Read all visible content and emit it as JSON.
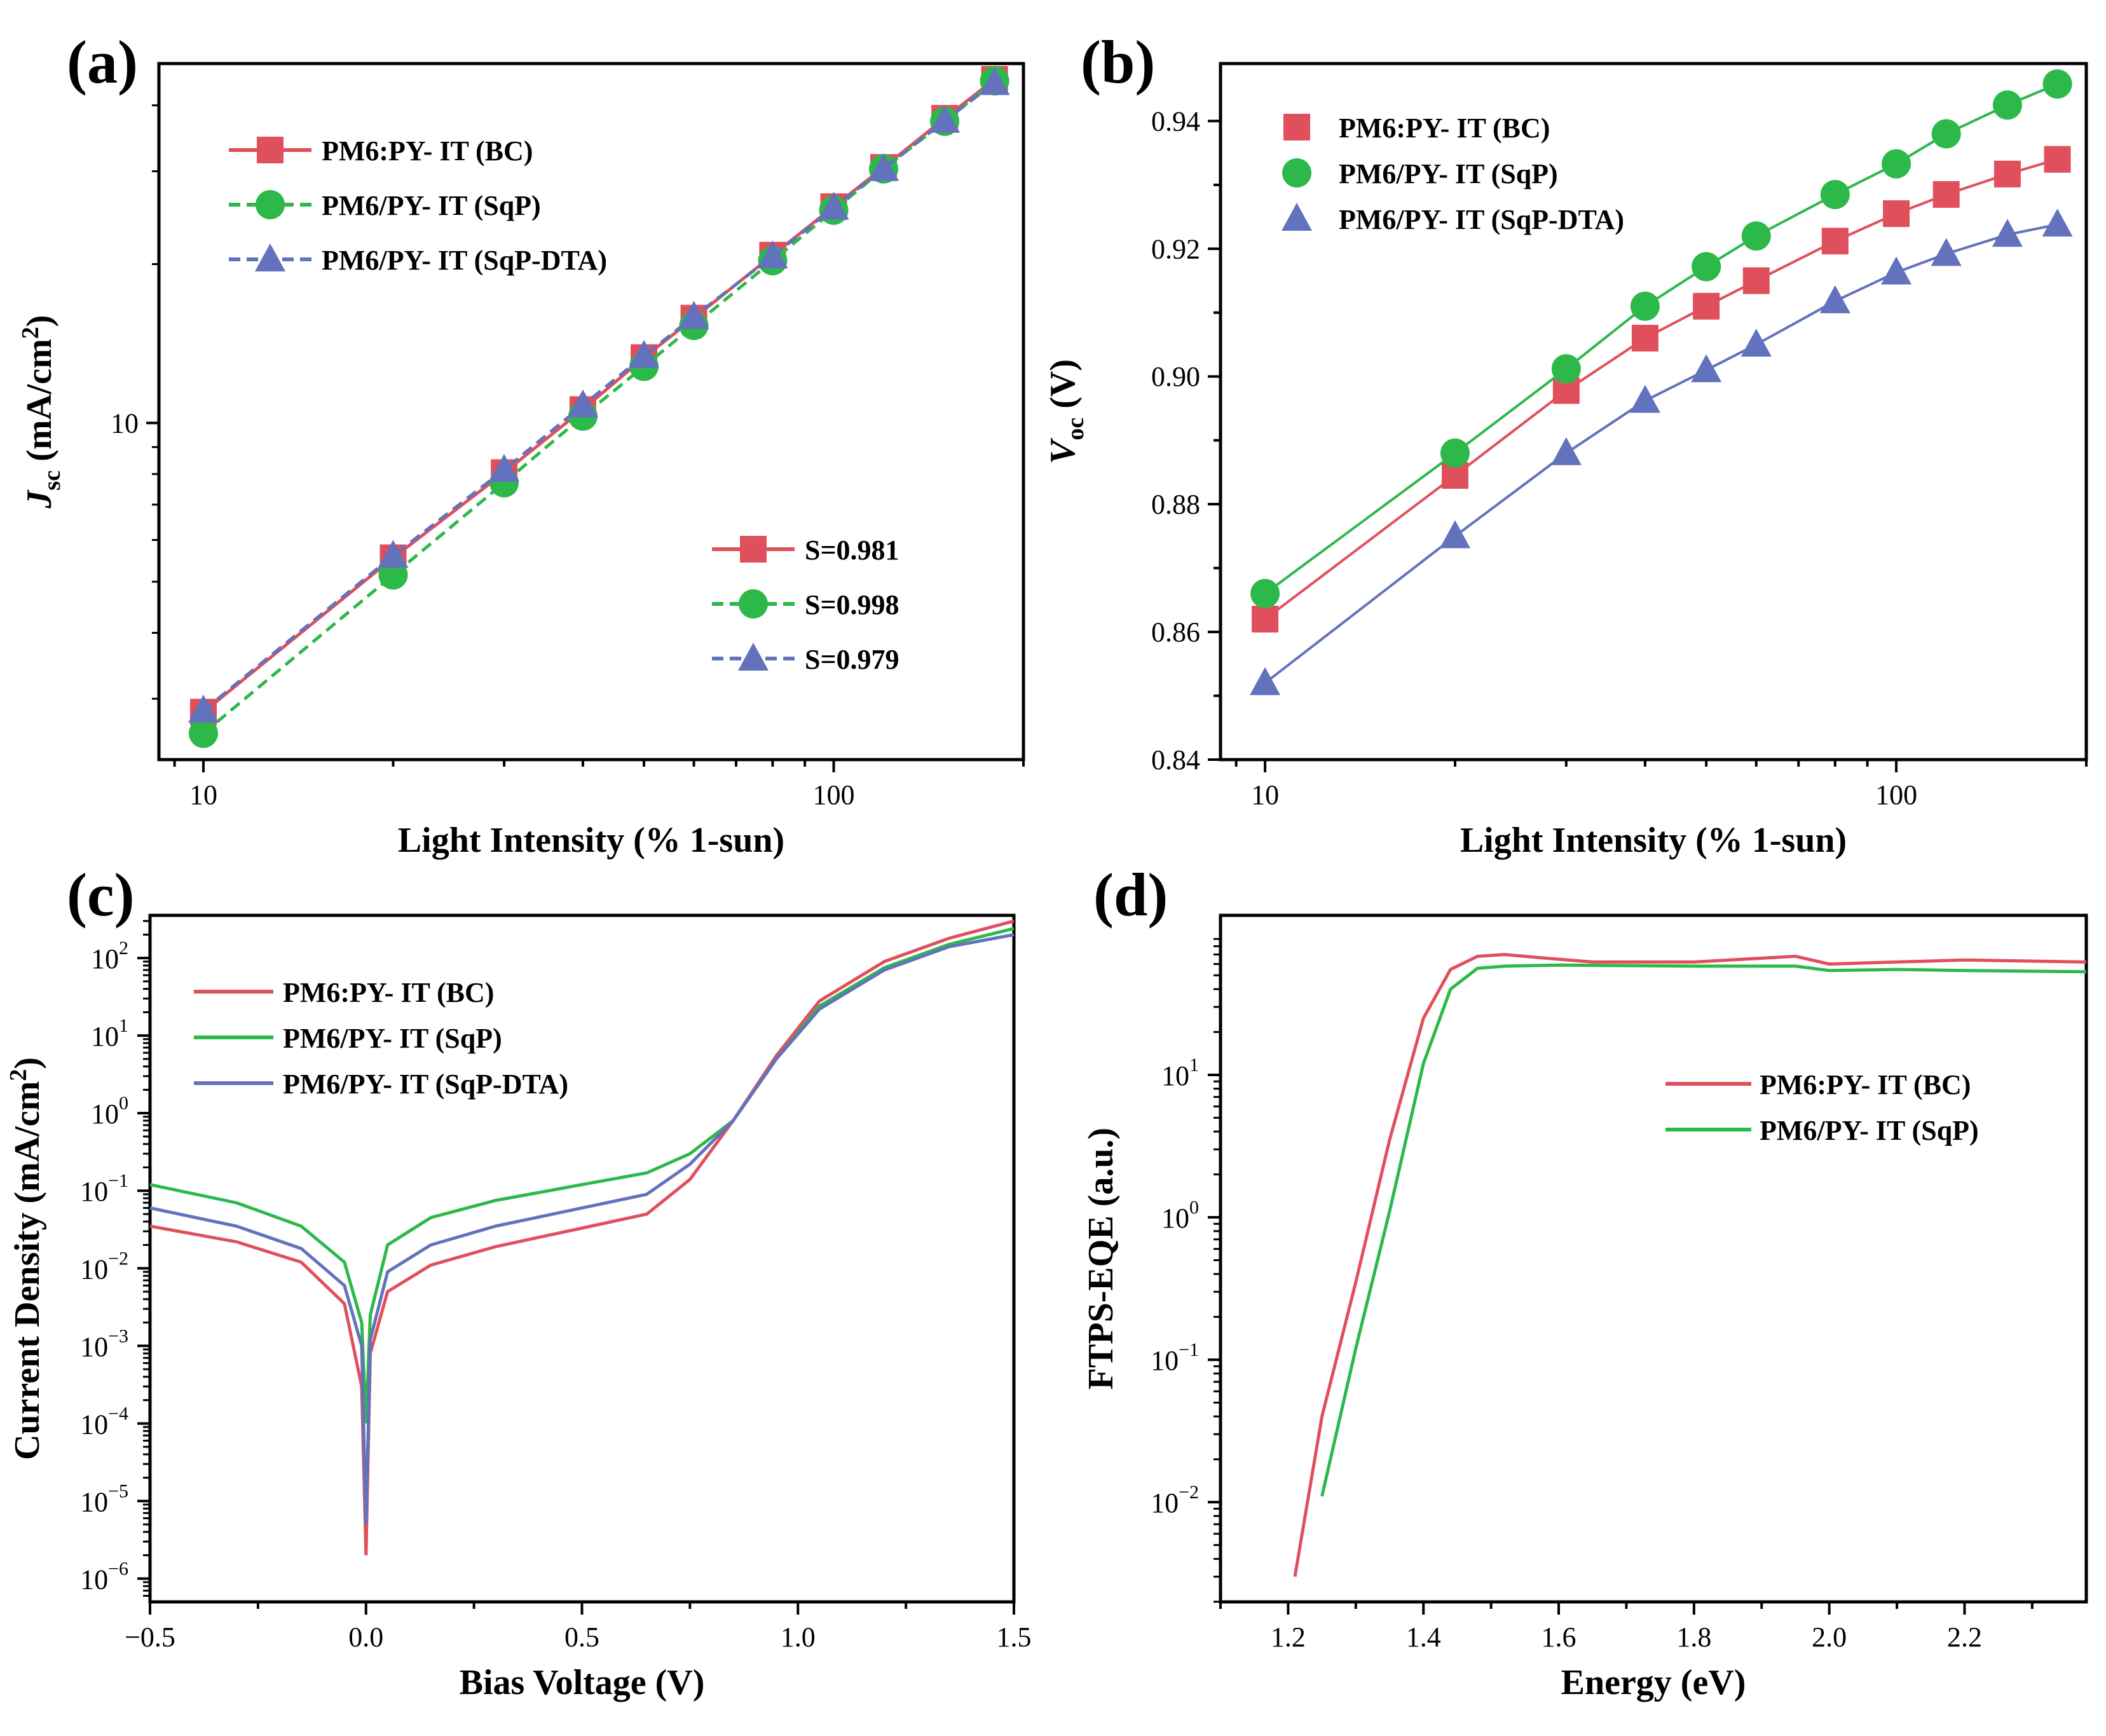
{
  "colors": {
    "red": "#E0505C",
    "green": "#2DB84A",
    "blue": "#6272BC"
  },
  "chart_data": [
    {
      "panel": "(a)",
      "type": "line",
      "xscale": "log",
      "yscale": "log",
      "xlabel": "Light Intensity (% 1-sun)",
      "ylabel_main": "J",
      "ylabel_sub": "sc",
      "ylabel_rest": " (mA/cm",
      "ylabel_sup": "2",
      "ylabel_end": ")",
      "xlim": [
        8.5,
        200
      ],
      "ylim": [
        2.3,
        48
      ],
      "xticks": [
        {
          "value": 10,
          "label": "10"
        },
        {
          "value": 100,
          "label": "100"
        }
      ],
      "yticks": [
        {
          "value": 10,
          "label": "10"
        }
      ],
      "x": [
        10,
        20,
        30,
        40,
        50,
        60,
        80,
        100,
        120,
        150,
        180
      ],
      "series": [
        {
          "name": "PM6:PY- IT (BC)",
          "color": "#E0505C",
          "marker": "square",
          "dashed": false,
          "slope_label": "S=0.981",
          "values": [
            2.83,
            5.55,
            8.05,
            10.6,
            13.3,
            15.8,
            20.8,
            25.7,
            30.5,
            37.8,
            44.8
          ]
        },
        {
          "name": "PM6/PY- IT (SqP)",
          "color": "#2DB84A",
          "marker": "circle",
          "dashed": true,
          "slope_label": "S=0.998",
          "values": [
            2.58,
            5.15,
            7.7,
            10.3,
            12.8,
            15.3,
            20.3,
            25.3,
            30.3,
            37.3,
            44.5
          ]
        },
        {
          "name": "PM6/PY- IT (SqP-DTA)",
          "color": "#6272BC",
          "marker": "triangle",
          "dashed": true,
          "slope_label": "S=0.979",
          "values": [
            2.85,
            5.6,
            8.15,
            10.8,
            13.4,
            15.9,
            20.7,
            25.6,
            30.3,
            37.4,
            44.1
          ]
        }
      ]
    },
    {
      "panel": "(b)",
      "type": "scatter",
      "xscale": "log",
      "yscale": "linear",
      "xlabel": "Light Intensity (% 1-sun)",
      "ylabel_main": "V",
      "ylabel_sub": "oc",
      "ylabel_rest": " (V)",
      "xlim": [
        8.5,
        200
      ],
      "ylim": [
        0.84,
        0.949
      ],
      "xticks": [
        {
          "value": 10,
          "label": "10"
        },
        {
          "value": 100,
          "label": "100"
        }
      ],
      "yticks": [
        {
          "value": 0.84,
          "label": "0.84"
        },
        {
          "value": 0.86,
          "label": "0.86"
        },
        {
          "value": 0.88,
          "label": "0.88"
        },
        {
          "value": 0.9,
          "label": "0.90"
        },
        {
          "value": 0.92,
          "label": "0.92"
        },
        {
          "value": 0.94,
          "label": "0.94"
        }
      ],
      "x": [
        10,
        20,
        30,
        40,
        50,
        60,
        80,
        100,
        120,
        150,
        180
      ],
      "series": [
        {
          "name": "PM6:PY- IT (BC)",
          "color": "#E0505C",
          "marker": "square",
          "values": [
            0.862,
            0.8845,
            0.8978,
            0.906,
            0.911,
            0.915,
            0.9212,
            0.9255,
            0.9285,
            0.9317,
            0.934
          ]
        },
        {
          "name": "PM6/PY- IT (SqP)",
          "color": "#2DB84A",
          "marker": "circle",
          "values": [
            0.866,
            0.888,
            0.9012,
            0.911,
            0.9172,
            0.922,
            0.9285,
            0.9333,
            0.938,
            0.9425,
            0.9458
          ]
        },
        {
          "name": "PM6/PY- IT (SqP-DTA)",
          "color": "#6272BC",
          "marker": "triangle",
          "values": [
            0.852,
            0.875,
            0.888,
            0.8962,
            0.901,
            0.905,
            0.9118,
            0.9163,
            0.9192,
            0.9222,
            0.9238
          ]
        }
      ]
    },
    {
      "panel": "(c)",
      "type": "line",
      "xscale": "linear",
      "yscale": "log",
      "xlabel": "Bias Voltage (V)",
      "ylabel_main": "Current Density (mA/cm",
      "ylabel_sup": "2",
      "ylabel_end": ")",
      "xlim": [
        -0.5,
        1.5
      ],
      "ylim_exp": [
        -6.3,
        2.55
      ],
      "xticks": [
        {
          "value": -0.5,
          "label": "-0.5"
        },
        {
          "value": 0.0,
          "label": "0.0"
        },
        {
          "value": 0.5,
          "label": "0.5"
        },
        {
          "value": 1.0,
          "label": "1.0"
        },
        {
          "value": 1.5,
          "label": "1.5"
        }
      ],
      "yticks": [
        {
          "exp": -6,
          "label": "-6"
        },
        {
          "exp": -5,
          "label": "-5"
        },
        {
          "exp": -4,
          "label": "-4"
        },
        {
          "exp": -3,
          "label": "-3"
        },
        {
          "exp": -2,
          "label": "-2"
        },
        {
          "exp": -1,
          "label": "-1"
        },
        {
          "exp": 0,
          "label": "0"
        },
        {
          "exp": 1,
          "label": "1"
        },
        {
          "exp": 2,
          "label": "2"
        }
      ],
      "series": [
        {
          "name": "PM6:PY- IT (BC)",
          "color": "#E0505C",
          "x": [
            -0.5,
            -0.3,
            -0.15,
            -0.05,
            -0.01,
            0.0,
            0.01,
            0.05,
            0.15,
            0.3,
            0.5,
            0.65,
            0.75,
            0.85,
            0.95,
            1.05,
            1.2,
            1.35,
            1.5
          ],
          "values": [
            0.035,
            0.022,
            0.012,
            0.0035,
            0.0003,
            2e-06,
            0.0008,
            0.005,
            0.011,
            0.019,
            0.033,
            0.05,
            0.14,
            0.8,
            5.5,
            28,
            90,
            180,
            300
          ]
        },
        {
          "name": "PM6/PY- IT (SqP)",
          "color": "#2DB84A",
          "x": [
            -0.5,
            -0.3,
            -0.15,
            -0.05,
            -0.01,
            0.0,
            0.01,
            0.05,
            0.15,
            0.3,
            0.5,
            0.65,
            0.75,
            0.85,
            0.95,
            1.05,
            1.2,
            1.35,
            1.5
          ],
          "values": [
            0.12,
            0.07,
            0.035,
            0.012,
            0.002,
            0.0001,
            0.0025,
            0.02,
            0.045,
            0.075,
            0.12,
            0.17,
            0.3,
            0.8,
            5,
            24,
            75,
            150,
            240
          ]
        },
        {
          "name": "PM6/PY- IT (SqP-DTA)",
          "color": "#6272BC",
          "x": [
            -0.5,
            -0.3,
            -0.15,
            -0.05,
            -0.01,
            0.0,
            0.01,
            0.05,
            0.15,
            0.3,
            0.5,
            0.65,
            0.75,
            0.85,
            0.95,
            1.05,
            1.2,
            1.35,
            1.5
          ],
          "values": [
            0.06,
            0.035,
            0.018,
            0.006,
            0.001,
            5e-06,
            0.0012,
            0.009,
            0.02,
            0.035,
            0.06,
            0.09,
            0.22,
            0.8,
            5,
            22,
            70,
            140,
            200
          ]
        }
      ]
    },
    {
      "panel": "(d)",
      "type": "line",
      "xscale": "linear",
      "yscale": "log",
      "xlabel": "Energy (eV)",
      "ylabel_main": "FTPS-EQE (a.u.)",
      "xlim": [
        1.1,
        2.38
      ],
      "ylim_exp": [
        -2.7,
        2.12
      ],
      "xticks": [
        {
          "value": 1.2,
          "label": "1.2"
        },
        {
          "value": 1.4,
          "label": "1.4"
        },
        {
          "value": 1.6,
          "label": "1.6"
        },
        {
          "value": 1.8,
          "label": "1.8"
        },
        {
          "value": 2.0,
          "label": "2.0"
        },
        {
          "value": 2.2,
          "label": "2.2"
        }
      ],
      "yticks": [
        {
          "exp": -2,
          "label": "-2"
        },
        {
          "exp": -1,
          "label": "-1"
        },
        {
          "exp": 0,
          "label": "0"
        },
        {
          "exp": 1,
          "label": "1"
        }
      ],
      "series": [
        {
          "name": "PM6:PY- IT (BC)",
          "color": "#E0505C",
          "x": [
            1.21,
            1.25,
            1.3,
            1.35,
            1.4,
            1.44,
            1.48,
            1.52,
            1.58,
            1.65,
            1.8,
            1.95,
            2.0,
            2.1,
            2.2,
            2.38
          ],
          "values": [
            0.003,
            0.04,
            0.35,
            3.5,
            25,
            55,
            68,
            70,
            66,
            62,
            62,
            68,
            60,
            62,
            64,
            62
          ]
        },
        {
          "name": "PM6/PY- IT (SqP)",
          "color": "#2DB84A",
          "x": [
            1.25,
            1.3,
            1.35,
            1.4,
            1.44,
            1.48,
            1.52,
            1.6,
            1.8,
            1.95,
            2.0,
            2.1,
            2.2,
            2.38
          ],
          "values": [
            0.011,
            0.12,
            1.1,
            12,
            40,
            56,
            58,
            59,
            58,
            58,
            54,
            55,
            54,
            53
          ]
        }
      ]
    }
  ]
}
